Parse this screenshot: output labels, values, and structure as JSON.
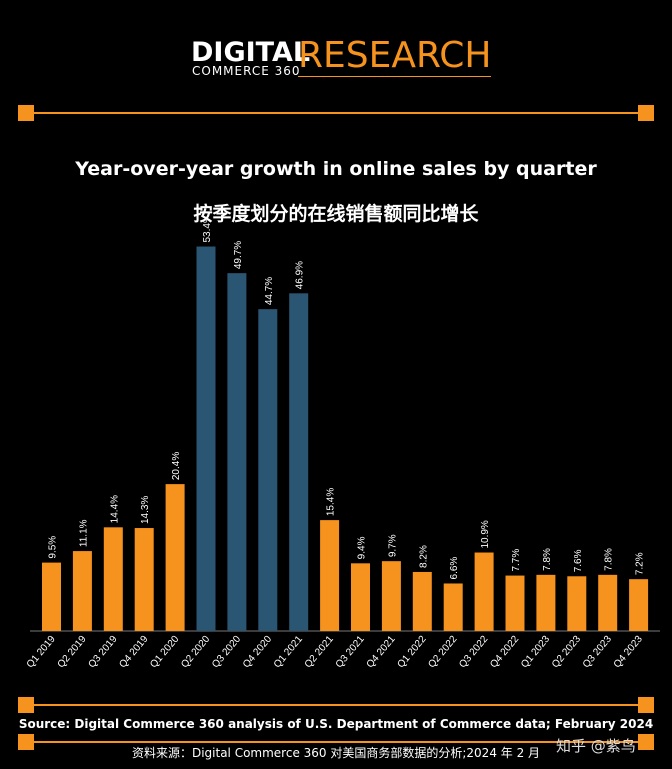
{
  "header": {
    "logo_digital": "DIGITAL",
    "logo_commerce": "COMMERCE 360",
    "logo_research": "RESEARCH"
  },
  "title": "Year-over-year growth in online sales by quarter",
  "title_cn": "按季度划分的在线销售额同比增长",
  "source": "Source: Digital Commerce 360 analysis of U.S. Department of Commerce data; February 2024",
  "source_cn": "资料来源：Digital Commerce 360 对美国商务部数据的分析;2024 年 2 月",
  "watermark": "知乎 @紫鸟",
  "colors": {
    "accent": "#f6921e",
    "highlight": "#2b5673",
    "background": "#000000"
  },
  "chart_data": {
    "type": "bar",
    "title": "Year-over-year growth in online sales by quarter",
    "xlabel": "",
    "ylabel": "",
    "ylim": [
      0,
      60
    ],
    "grid": false,
    "categories": [
      "Q1 2019",
      "Q2 2019",
      "Q3 2019",
      "Q4 2019",
      "Q1 2020",
      "Q2 2020",
      "Q3 2020",
      "Q4 2020",
      "Q1 2021",
      "Q2 2021",
      "Q3 2021",
      "Q4 2021",
      "Q1 2022",
      "Q2 2022",
      "Q3 2022",
      "Q4 2022",
      "Q1 2023",
      "Q2 2023",
      "Q3 2023",
      "Q4 2023"
    ],
    "values": [
      9.5,
      11.1,
      14.4,
      14.3,
      20.4,
      53.4,
      49.7,
      44.7,
      46.9,
      15.4,
      9.4,
      9.7,
      8.2,
      6.6,
      10.9,
      7.7,
      7.8,
      7.6,
      7.8,
      7.2
    ],
    "labels": [
      "9.5%",
      "11.1%",
      "14.4%",
      "14.3%",
      "20.4%",
      "53.4%",
      "49.7%",
      "44.7%",
      "46.9%",
      "15.4%",
      "9.4%",
      "9.7%",
      "8.2%",
      "6.6%",
      "10.9%",
      "7.7%",
      "7.8%",
      "7.6%",
      "7.8%",
      "7.2%"
    ],
    "highlighted": [
      "Q2 2020",
      "Q3 2020",
      "Q4 2020",
      "Q1 2021"
    ]
  }
}
